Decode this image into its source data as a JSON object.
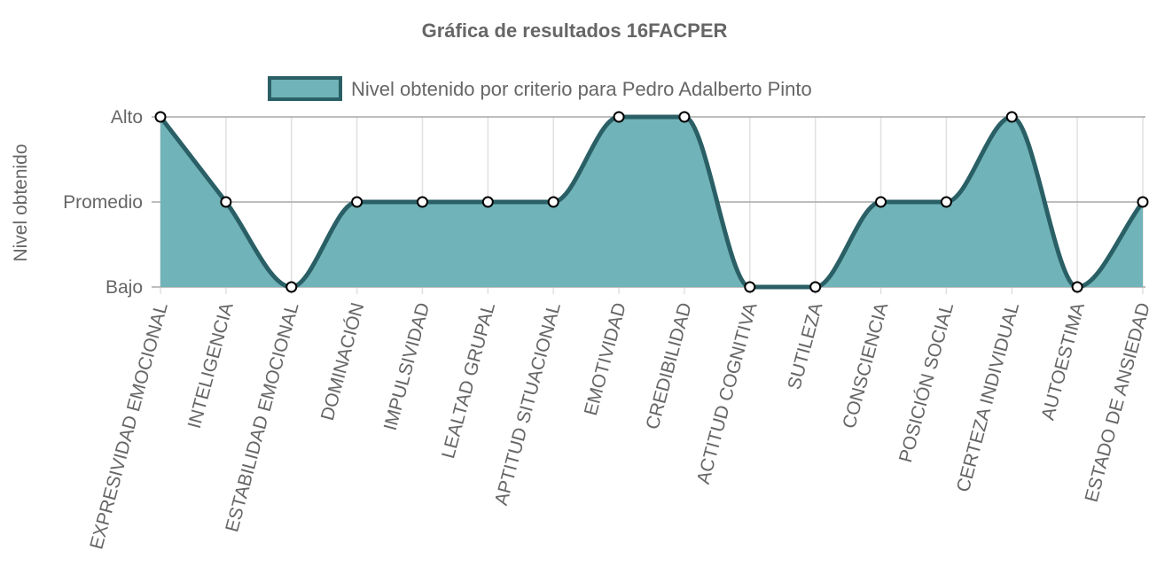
{
  "chart_data": {
    "type": "area",
    "title": "Gráfica de resultados 16FACPER",
    "ylabel": "Nivel obtenido",
    "xlabel": "",
    "y_levels": [
      "Bajo",
      "Promedio",
      "Alto"
    ],
    "ylim": [
      0,
      2
    ],
    "grid": true,
    "legend_position": "top",
    "categories": [
      "EXPRESIVIDAD EMOCIONAL",
      "INTELIGENCIA",
      "ESTABILIDAD EMOCIONAL",
      "DOMINACIÓN",
      "IMPULSIVIDAD",
      "LEALTAD GRUPAL",
      "APTITUD SITUACIONAL",
      "EMOTIVIDAD",
      "CREDIBILIDAD",
      "ACTITUD COGNITIVA",
      "SUTILEZA",
      "CONSCIENCIA",
      "POSICIÓN SOCIAL",
      "CERTEZA INDIVIDUAL",
      "AUTOESTIMA",
      "ESTADO DE ANSIEDAD"
    ],
    "series": [
      {
        "name": "Nivel obtenido por criterio para Pedro Adalberto Pinto",
        "values": [
          2,
          1,
          0,
          1,
          1,
          1,
          1,
          2,
          2,
          0,
          0,
          1,
          1,
          2,
          0,
          1
        ]
      }
    ],
    "colors": {
      "fill": "#70b3b8",
      "line": "#2a5f66",
      "point_fill": "#ffffff",
      "point_stroke": "#000000",
      "grid": "#e0e0e0",
      "axis_text": "#666666"
    }
  }
}
